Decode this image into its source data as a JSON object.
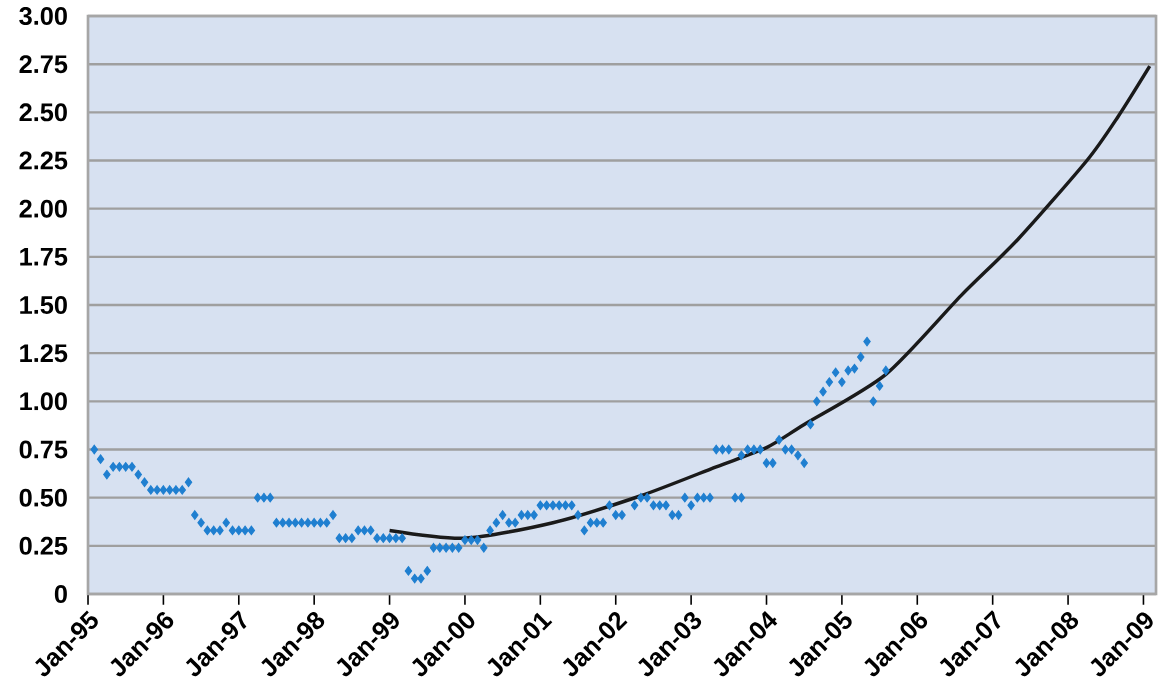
{
  "chart_data": {
    "type": "scatter",
    "marker": "diamond",
    "grid": "y",
    "xlim": [
      "1995-01",
      "2009-03"
    ],
    "ylim": [
      0,
      3
    ],
    "xticks": [
      {
        "value": "1995-01",
        "label": "Jan-95"
      },
      {
        "value": "1996-01",
        "label": "Jan-96"
      },
      {
        "value": "1997-01",
        "label": "Jan-97"
      },
      {
        "value": "1998-01",
        "label": "Jan-98"
      },
      {
        "value": "1999-01",
        "label": "Jan-99"
      },
      {
        "value": "2000-01",
        "label": "Jan-00"
      },
      {
        "value": "2001-01",
        "label": "Jan-01"
      },
      {
        "value": "2002-01",
        "label": "Jan-02"
      },
      {
        "value": "2003-01",
        "label": "Jan-03"
      },
      {
        "value": "2004-01",
        "label": "Jan-04"
      },
      {
        "value": "2005-01",
        "label": "Jan-05"
      },
      {
        "value": "2006-01",
        "label": "Jan-06"
      },
      {
        "value": "2007-01",
        "label": "Jan-07"
      },
      {
        "value": "2008-01",
        "label": "Jan-08"
      },
      {
        "value": "2009-01",
        "label": "Jan-09"
      }
    ],
    "yticks": [
      0,
      {
        "value": 0.25,
        "label": "0.25"
      },
      {
        "value": 0.5,
        "label": "0.50"
      },
      {
        "value": 0.75,
        "label": "0.75"
      },
      {
        "value": 1,
        "label": "1.00"
      },
      {
        "value": 1.25,
        "label": "1.25"
      },
      {
        "value": 1.5,
        "label": "1.50"
      },
      {
        "value": 1.75,
        "label": "1.75"
      },
      {
        "value": 2,
        "label": "2.00"
      },
      {
        "value": 2.25,
        "label": "2.25"
      },
      {
        "value": 2.5,
        "label": "2.50"
      },
      {
        "value": 2.75,
        "label": "2.75"
      },
      {
        "value": 3,
        "label": "3.00"
      }
    ],
    "x": [
      "1995-02",
      "1995-03",
      "1995-04",
      "1995-05",
      "1995-06",
      "1995-07",
      "1995-08",
      "1995-09",
      "1995-10",
      "1995-11",
      "1995-12",
      "1996-01",
      "1996-02",
      "1996-03",
      "1996-04",
      "1996-05",
      "1996-06",
      "1996-07",
      "1996-08",
      "1996-09",
      "1996-10",
      "1996-11",
      "1996-12",
      "1997-01",
      "1997-02",
      "1997-03",
      "1997-04",
      "1997-05",
      "1997-06",
      "1997-07",
      "1997-08",
      "1997-09",
      "1997-10",
      "1997-11",
      "1997-12",
      "1998-01",
      "1998-02",
      "1998-03",
      "1998-04",
      "1998-05",
      "1998-06",
      "1998-07",
      "1998-08",
      "1998-09",
      "1998-10",
      "1998-11",
      "1998-12",
      "1999-01",
      "1999-02",
      "1999-03",
      "1999-04",
      "1999-05",
      "1999-06",
      "1999-07",
      "1999-08",
      "1999-09",
      "1999-10",
      "1999-11",
      "1999-12",
      "2000-01",
      "2000-02",
      "2000-03",
      "2000-04",
      "2000-05",
      "2000-06",
      "2000-07",
      "2000-08",
      "2000-09",
      "2000-10",
      "2000-11",
      "2000-12",
      "2001-01",
      "2001-02",
      "2001-03",
      "2001-04",
      "2001-05",
      "2001-06",
      "2001-07",
      "2001-08",
      "2001-09",
      "2001-10",
      "2001-11",
      "2001-12",
      "2002-01",
      "2002-02",
      "2002-04",
      "2002-05",
      "2002-06",
      "2002-07",
      "2002-08",
      "2002-09",
      "2002-10",
      "2002-11",
      "2002-12",
      "2003-01",
      "2003-02",
      "2003-03",
      "2003-04",
      "2003-05",
      "2003-06",
      "2003-07",
      "2003-08",
      "2003-09",
      "2003-09",
      "2003-10",
      "2003-11",
      "2003-12",
      "2004-01",
      "2004-02",
      "2004-03",
      "2004-04",
      "2004-05",
      "2004-06",
      "2004-07",
      "2004-08",
      "2004-09",
      "2004-10",
      "2004-11",
      "2004-12",
      "2005-01",
      "2005-02",
      "2005-03",
      "2005-04",
      "2005-05",
      "2005-06",
      "2005-07",
      "2005-08"
    ],
    "series": [
      {
        "color": "#1f7fd0",
        "values": [
          0.75,
          0.7,
          0.62,
          0.66,
          0.66,
          0.66,
          0.66,
          0.62,
          0.58,
          0.54,
          0.54,
          0.54,
          0.54,
          0.54,
          0.54,
          0.58,
          0.41,
          0.37,
          0.33,
          0.33,
          0.33,
          0.37,
          0.33,
          0.33,
          0.33,
          0.33,
          0.5,
          0.5,
          0.5,
          0.37,
          0.37,
          0.37,
          0.37,
          0.37,
          0.37,
          0.37,
          0.37,
          0.37,
          0.41,
          0.29,
          0.29,
          0.29,
          0.33,
          0.33,
          0.33,
          0.29,
          0.29,
          0.29,
          0.29,
          0.29,
          0.12,
          0.08,
          0.08,
          0.12,
          0.24,
          0.24,
          0.24,
          0.24,
          0.24,
          0.28,
          0.28,
          0.28,
          0.24,
          0.33,
          0.37,
          0.41,
          0.37,
          0.37,
          0.41,
          0.41,
          0.41,
          0.46,
          0.46,
          0.46,
          0.46,
          0.46,
          0.46,
          0.41,
          0.33,
          0.37,
          0.37,
          0.37,
          0.46,
          0.41,
          0.41,
          0.46,
          0.5,
          0.5,
          0.46,
          0.46,
          0.46,
          0.41,
          0.41,
          0.5,
          0.46,
          0.5,
          0.5,
          0.5,
          0.75,
          0.75,
          0.75,
          0.5,
          0.5,
          0.72,
          0.75,
          0.75,
          0.75,
          0.68,
          0.68,
          0.8,
          0.75,
          0.75,
          0.72,
          0.68,
          0.88,
          1.0,
          1.05,
          1.1,
          1.15,
          1.1,
          1.16,
          1.17,
          1.23,
          1.31,
          1.0,
          1.08,
          1.16
        ]
      },
      {
        "type": "line",
        "marker": "none",
        "color": "#1a1a1a",
        "x": [
          "1999-01",
          "2000-01",
          "2001-03",
          "2002-05",
          "2003-05",
          "2004-01",
          "2004-07",
          "2005-08",
          "2006-08",
          "2007-05",
          "2008-04",
          "2008-09",
          "2009-02"
        ],
        "values": [
          0.33,
          0.29,
          0.37,
          0.51,
          0.66,
          0.76,
          0.88,
          1.14,
          1.55,
          1.84,
          2.25,
          2.48,
          2.74
        ]
      }
    ]
  }
}
